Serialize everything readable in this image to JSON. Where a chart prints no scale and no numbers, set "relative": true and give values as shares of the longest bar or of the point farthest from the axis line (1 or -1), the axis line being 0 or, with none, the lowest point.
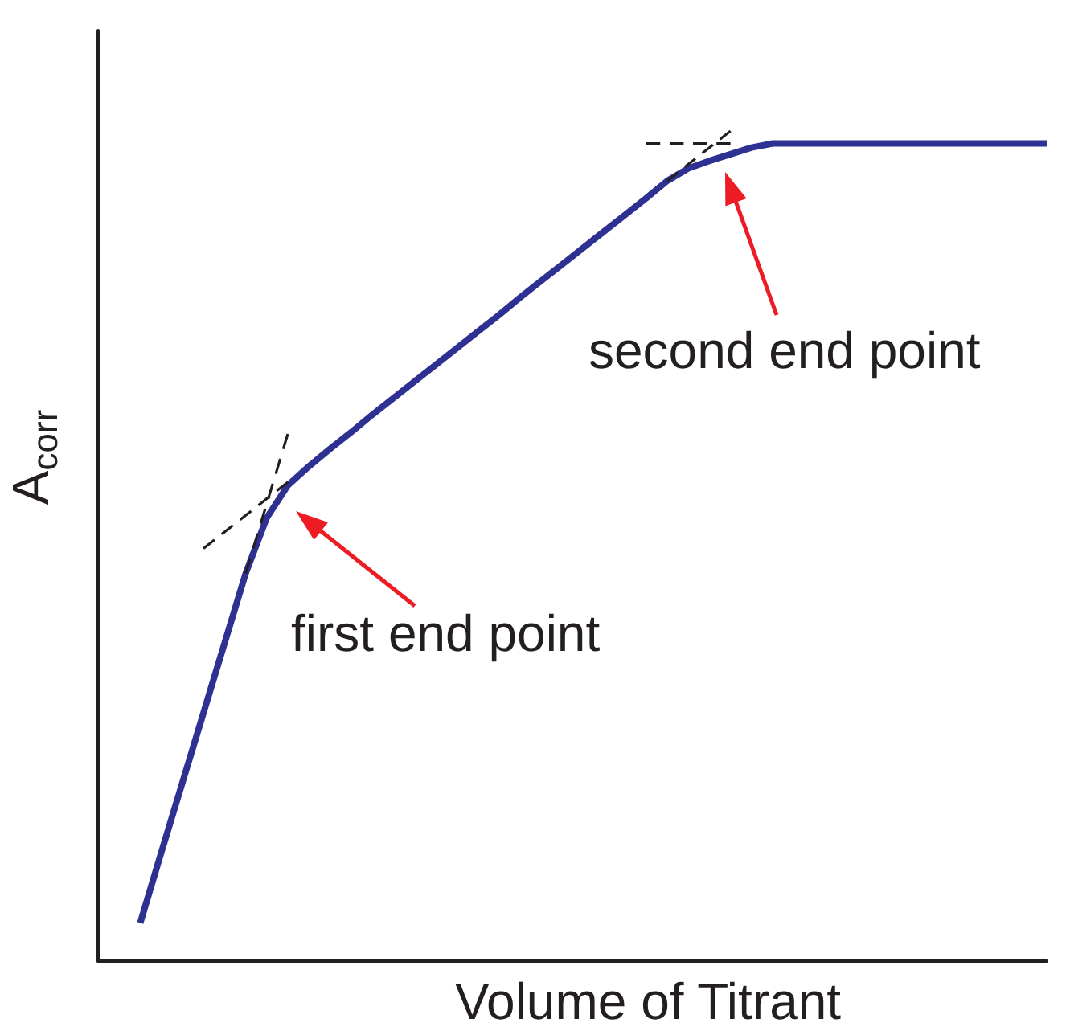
{
  "chart_data": {
    "type": "line",
    "xlabel": "Volume of Titrant",
    "ylabel": "A$_{corr}$",
    "relative": true,
    "tick_labels": false,
    "marker": "none",
    "categories": [
      null,
      null,
      null,
      null,
      null,
      null,
      null,
      null,
      null,
      null,
      null,
      null,
      null,
      null,
      null,
      null,
      null,
      null,
      null,
      null,
      null,
      null,
      null,
      null,
      null,
      null,
      null,
      null,
      null,
      null,
      null,
      null,
      null,
      null,
      null,
      null,
      null,
      null,
      null,
      null,
      null,
      null,
      null,
      null,
      null,
      null
    ],
    "series": [
      {
        "color": "#2e3192",
        "values": [
          null,
          null,
          0.046,
          0.131,
          0.215,
          0.299,
          0.383,
          0.467,
          0.534,
          0.573,
          0.596,
          0.617,
          0.637,
          0.658,
          0.678,
          0.698,
          0.718,
          0.738,
          0.758,
          0.778,
          0.799,
          0.819,
          0.839,
          0.859,
          0.879,
          0.899,
          0.919,
          0.94,
          0.955,
          0.964,
          0.972,
          0.98,
          0.985,
          0.985,
          0.985,
          0.985,
          0.985,
          0.985,
          0.985,
          0.985,
          0.985,
          0.985,
          0.985,
          0.985,
          0.985,
          0.985
        ]
      },
      {
        "color": "#231f20",
        "line_style": "dashed",
        "values": [
          null,
          null,
          null,
          null,
          null,
          null,
          null,
          0.467,
          0.551,
          0.635,
          null,
          null,
          null,
          null,
          null,
          null,
          null,
          null,
          null,
          null,
          null,
          null,
          null,
          null,
          null,
          null,
          null,
          null,
          null,
          null,
          null,
          null,
          null,
          null,
          null,
          null,
          null,
          null,
          null,
          null,
          null,
          null,
          null,
          null,
          null,
          null
        ]
      },
      {
        "color": "#231f20",
        "line_style": "dashed",
        "values": [
          null,
          null,
          null,
          null,
          null,
          0.497,
          0.517,
          0.537,
          0.557,
          0.577,
          null,
          null,
          null,
          null,
          null,
          null,
          null,
          null,
          null,
          null,
          null,
          null,
          null,
          null,
          null,
          null,
          null,
          null,
          null,
          null,
          null,
          null,
          null,
          null,
          null,
          null,
          null,
          null,
          null,
          null,
          null,
          null,
          null,
          null,
          null,
          null
        ]
      },
      {
        "color": "#231f20",
        "line_style": "dashed",
        "values": [
          null,
          null,
          null,
          null,
          null,
          null,
          null,
          null,
          null,
          null,
          null,
          null,
          null,
          null,
          null,
          null,
          null,
          null,
          null,
          null,
          null,
          null,
          null,
          null,
          null,
          null,
          0.985,
          0.985,
          0.985,
          0.985,
          0.985,
          null,
          null,
          null,
          null,
          null,
          null,
          null,
          null,
          null,
          null,
          null,
          null,
          null,
          null,
          null
        ]
      },
      {
        "color": "#231f20",
        "line_style": "dashed",
        "values": [
          null,
          null,
          null,
          null,
          null,
          null,
          null,
          null,
          null,
          null,
          null,
          null,
          null,
          null,
          null,
          null,
          null,
          null,
          null,
          null,
          null,
          null,
          null,
          null,
          null,
          null,
          null,
          0.94,
          0.96,
          0.98,
          1.0,
          null,
          null,
          null,
          null,
          null,
          null,
          null,
          null,
          null,
          null,
          null,
          null,
          null,
          null,
          null
        ]
      }
    ],
    "annotations": [
      "first end point",
      "second end point"
    ]
  }
}
